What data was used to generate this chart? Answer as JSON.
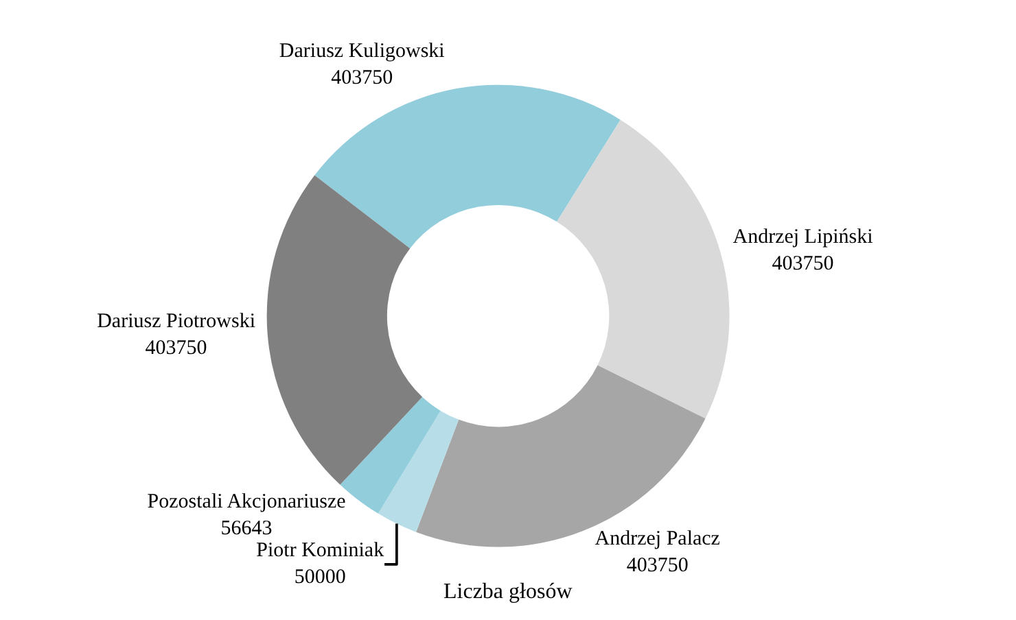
{
  "chart_data": {
    "type": "donut",
    "title": "Liczba głosów",
    "categories": [
      "Dariusz Kuligowski",
      "Andrzej Lipiński",
      "Andrzej Palacz",
      "Piotr Kominiak",
      "Pozostali Akcjonariusze",
      "Dariusz Piotrowski"
    ],
    "values": [
      403750,
      403750,
      403750,
      50000,
      56643,
      403750
    ],
    "colors": [
      "#92cddc",
      "#d9d9d9",
      "#a6a6a6",
      "#b7dee8",
      "#92cddc",
      "#808080"
    ],
    "data_labels": true,
    "legend": false
  }
}
